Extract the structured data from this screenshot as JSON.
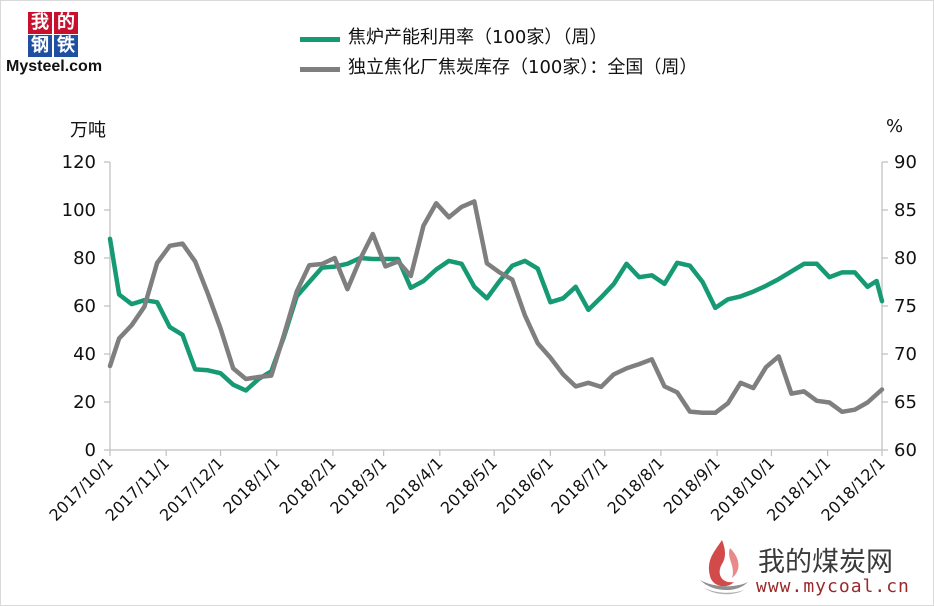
{
  "logo": {
    "chars": [
      "我",
      "的",
      "钢",
      "铁"
    ],
    "brand": "Mysteel.com",
    "colors": {
      "red": "#c8102e",
      "blue": "#1f4fa0"
    }
  },
  "watermark": {
    "title": "我的煤炭网",
    "url": "www.mycoal.cn",
    "icon": "flame-logo-icon"
  },
  "chart_data": {
    "type": "line",
    "title": "",
    "left_axis": {
      "unit": "万吨",
      "range": [
        0,
        120
      ],
      "ticks": [
        0,
        20,
        40,
        60,
        80,
        100,
        120
      ]
    },
    "right_axis": {
      "unit": "%",
      "range": [
        60,
        90
      ],
      "ticks": [
        60,
        65,
        70,
        75,
        80,
        85,
        90
      ]
    },
    "x_range": [
      "2017-10-01",
      "2018-12-01"
    ],
    "x_tick_labels": [
      "2017/10/1",
      "2017/11/1",
      "2017/12/1",
      "2018/1/1",
      "2018/2/1",
      "2018/3/1",
      "2018/4/1",
      "2018/5/1",
      "2018/6/1",
      "2018/7/1",
      "2018/8/1",
      "2018/9/1",
      "2018/10/1",
      "2018/11/1",
      "2018/12/1"
    ],
    "grid": false,
    "legend_position": "top-center",
    "series": [
      {
        "name": "焦炉产能利用率（100家）（周）",
        "axis": "right",
        "color": "#159a74",
        "points": [
          [
            "2017-10-01",
            82.0
          ],
          [
            "2017-10-06",
            76.2
          ],
          [
            "2017-10-13",
            75.2
          ],
          [
            "2017-10-20",
            75.6
          ],
          [
            "2017-10-27",
            75.4
          ],
          [
            "2017-11-03",
            72.8
          ],
          [
            "2017-11-10",
            72.0
          ],
          [
            "2017-11-17",
            68.4
          ],
          [
            "2017-11-24",
            68.3
          ],
          [
            "2017-12-01",
            68.0
          ],
          [
            "2017-12-08",
            66.8
          ],
          [
            "2017-12-15",
            66.2
          ],
          [
            "2017-12-22",
            67.4
          ],
          [
            "2017-12-29",
            68.2
          ],
          [
            "2018-01-05",
            71.8
          ],
          [
            "2018-01-12",
            76.0
          ],
          [
            "2018-01-19",
            77.5
          ],
          [
            "2018-01-26",
            79.0
          ],
          [
            "2018-02-02",
            79.1
          ],
          [
            "2018-02-09",
            79.4
          ],
          [
            "2018-02-16",
            80.0
          ],
          [
            "2018-02-23",
            79.9
          ],
          [
            "2018-03-02",
            79.9
          ],
          [
            "2018-03-09",
            79.9
          ],
          [
            "2018-03-16",
            76.9
          ],
          [
            "2018-03-23",
            77.6
          ],
          [
            "2018-03-30",
            78.8
          ],
          [
            "2018-04-06",
            79.7
          ],
          [
            "2018-04-13",
            79.4
          ],
          [
            "2018-04-20",
            77.0
          ],
          [
            "2018-04-27",
            75.8
          ],
          [
            "2018-05-04",
            77.6
          ],
          [
            "2018-05-11",
            79.2
          ],
          [
            "2018-05-18",
            79.7
          ],
          [
            "2018-05-25",
            78.9
          ],
          [
            "2018-06-01",
            75.4
          ],
          [
            "2018-06-08",
            75.8
          ],
          [
            "2018-06-15",
            77.0
          ],
          [
            "2018-06-22",
            74.6
          ],
          [
            "2018-06-29",
            75.9
          ],
          [
            "2018-07-06",
            77.3
          ],
          [
            "2018-07-13",
            79.4
          ],
          [
            "2018-07-20",
            78.0
          ],
          [
            "2018-07-27",
            78.2
          ],
          [
            "2018-08-03",
            77.3
          ],
          [
            "2018-08-10",
            79.5
          ],
          [
            "2018-08-17",
            79.2
          ],
          [
            "2018-08-24",
            77.5
          ],
          [
            "2018-08-31",
            74.8
          ],
          [
            "2018-09-07",
            75.7
          ],
          [
            "2018-09-14",
            76.0
          ],
          [
            "2018-09-21",
            76.5
          ],
          [
            "2018-09-28",
            77.1
          ],
          [
            "2018-10-05",
            77.8
          ],
          [
            "2018-10-12",
            78.6
          ],
          [
            "2018-10-19",
            79.4
          ],
          [
            "2018-10-26",
            79.4
          ],
          [
            "2018-11-02",
            78.0
          ],
          [
            "2018-11-09",
            78.5
          ],
          [
            "2018-11-16",
            78.5
          ],
          [
            "2018-11-23",
            77.0
          ],
          [
            "2018-11-28",
            77.6
          ],
          [
            "2018-12-01",
            75.5
          ]
        ]
      },
      {
        "name": "独立焦化厂焦炭库存（100家）：全国（周）",
        "axis": "left",
        "color": "#7f7f7f",
        "points": [
          [
            "2017-10-01",
            35.0
          ],
          [
            "2017-10-06",
            46.5
          ],
          [
            "2017-10-13",
            52.0
          ],
          [
            "2017-10-20",
            59.7
          ],
          [
            "2017-10-27",
            77.9
          ],
          [
            "2017-11-03",
            85.1
          ],
          [
            "2017-11-10",
            86.0
          ],
          [
            "2017-11-17",
            78.5
          ],
          [
            "2017-11-24",
            65.1
          ],
          [
            "2017-12-01",
            50.7
          ],
          [
            "2017-12-08",
            34.0
          ],
          [
            "2017-12-15",
            29.6
          ],
          [
            "2017-12-22",
            30.4
          ],
          [
            "2017-12-29",
            31.0
          ],
          [
            "2018-01-05",
            48.0
          ],
          [
            "2018-01-12",
            66.0
          ],
          [
            "2018-01-19",
            77.0
          ],
          [
            "2018-01-26",
            77.5
          ],
          [
            "2018-02-02",
            80.0
          ],
          [
            "2018-02-09",
            67.0
          ],
          [
            "2018-02-16",
            79.5
          ],
          [
            "2018-02-23",
            90.0
          ],
          [
            "2018-03-02",
            76.5
          ],
          [
            "2018-03-09",
            78.6
          ],
          [
            "2018-03-16",
            72.5
          ],
          [
            "2018-03-23",
            93.5
          ],
          [
            "2018-03-30",
            102.8
          ],
          [
            "2018-04-06",
            97.0
          ],
          [
            "2018-04-13",
            101.3
          ],
          [
            "2018-04-20",
            103.6
          ],
          [
            "2018-04-27",
            77.8
          ],
          [
            "2018-05-04",
            74.0
          ],
          [
            "2018-05-11",
            71.0
          ],
          [
            "2018-05-18",
            56.0
          ],
          [
            "2018-05-25",
            44.5
          ],
          [
            "2018-06-01",
            38.5
          ],
          [
            "2018-06-08",
            31.5
          ],
          [
            "2018-06-15",
            26.5
          ],
          [
            "2018-06-22",
            28.0
          ],
          [
            "2018-06-29",
            26.3
          ],
          [
            "2018-07-06",
            31.5
          ],
          [
            "2018-07-13",
            34.0
          ],
          [
            "2018-07-20",
            35.8
          ],
          [
            "2018-07-27",
            37.8
          ],
          [
            "2018-08-03",
            26.5
          ],
          [
            "2018-08-10",
            24.0
          ],
          [
            "2018-08-17",
            16.0
          ],
          [
            "2018-08-24",
            15.5
          ],
          [
            "2018-08-31",
            15.5
          ],
          [
            "2018-09-07",
            19.5
          ],
          [
            "2018-09-14",
            28.0
          ],
          [
            "2018-09-21",
            25.8
          ],
          [
            "2018-09-28",
            34.5
          ],
          [
            "2018-10-05",
            39.0
          ],
          [
            "2018-10-12",
            23.5
          ],
          [
            "2018-10-19",
            24.4
          ],
          [
            "2018-10-26",
            20.5
          ],
          [
            "2018-11-02",
            19.8
          ],
          [
            "2018-11-09",
            15.9
          ],
          [
            "2018-11-16",
            16.8
          ],
          [
            "2018-11-23",
            19.8
          ],
          [
            "2018-12-01",
            25.2
          ]
        ]
      }
    ]
  }
}
